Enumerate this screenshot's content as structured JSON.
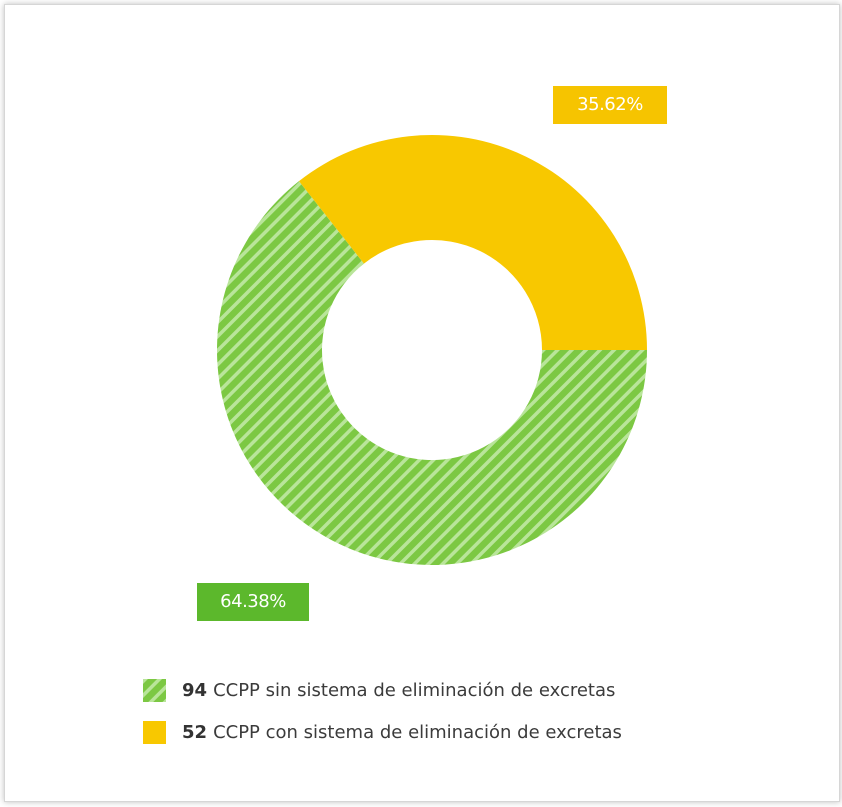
{
  "chart_data": {
    "type": "pie",
    "variant": "donut",
    "slices": [
      {
        "count": "94",
        "label": "CCPP sin sistema de eliminación de excretas",
        "value": 94,
        "percent_label": "64.38%",
        "color": "#7cc843",
        "pattern": "diagonal-stripes",
        "label_color": "#5cb82c"
      },
      {
        "count": "52",
        "label": "CCPP con sistema de eliminación de excretas",
        "value": 52,
        "percent_label": "35.62%",
        "color": "#f8c800",
        "pattern": "solid",
        "label_color": "#f6c400"
      }
    ],
    "legend_position": "bottom"
  }
}
